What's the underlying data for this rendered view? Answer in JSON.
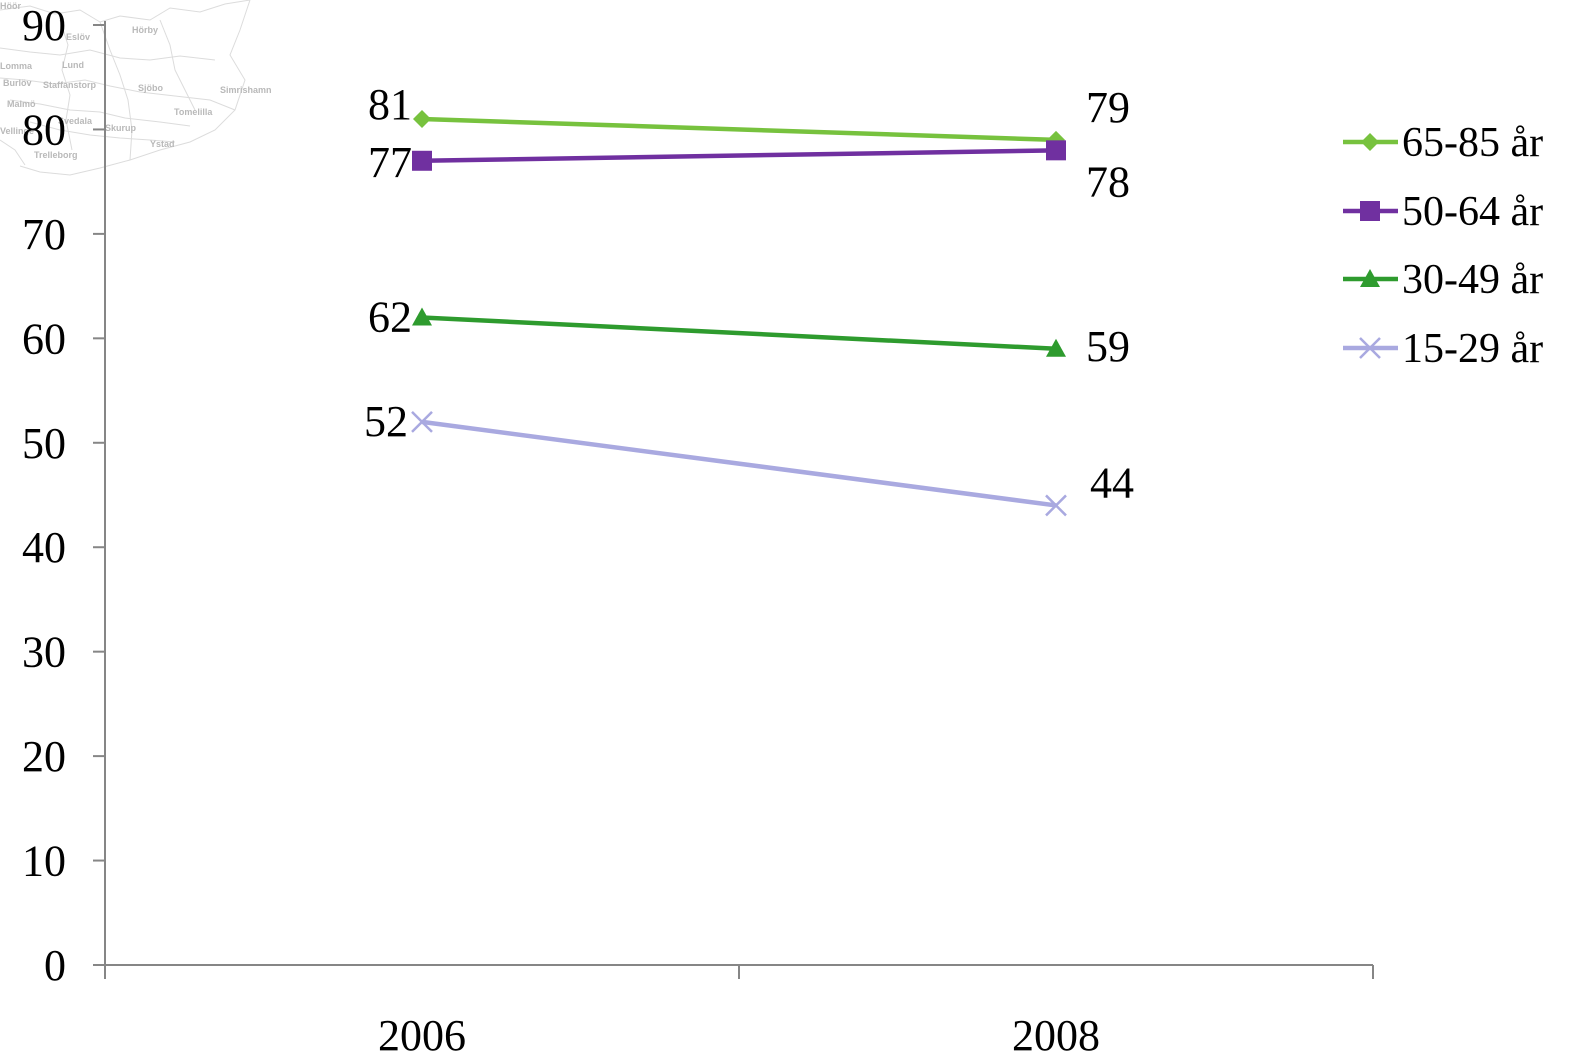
{
  "chart_data": {
    "type": "line",
    "categories": [
      "2006",
      "2008"
    ],
    "series": [
      {
        "name": "65-85 år",
        "values": [
          81,
          79
        ],
        "color": "#77c23e",
        "marker": "diamond"
      },
      {
        "name": "50-64 år",
        "values": [
          77,
          78
        ],
        "color": "#7030a0",
        "marker": "square"
      },
      {
        "name": "30-49 år",
        "values": [
          62,
          59
        ],
        "color": "#2e9b2e",
        "marker": "triangle"
      },
      {
        "name": "15-29 år",
        "values": [
          52,
          44
        ],
        "color": "#a9a9e0",
        "marker": "x"
      }
    ],
    "ylim": [
      0,
      90
    ],
    "yticks": [
      0,
      10,
      20,
      30,
      40,
      50,
      60,
      70,
      80,
      90
    ],
    "grid": false,
    "legend_position": "right",
    "title": "",
    "xlabel": "",
    "ylabel": ""
  },
  "map_watermark": {
    "labels": [
      "Höör",
      "Hörby",
      "Eslöv",
      "Lomma",
      "Lund",
      "Burlöv",
      "Staffanstorp",
      "Sjöbo",
      "Simrishamn",
      "Malmö",
      "Tomelilla",
      "Vellinge",
      "Svedala",
      "Skurup",
      "Ystad",
      "Trelleborg"
    ]
  }
}
